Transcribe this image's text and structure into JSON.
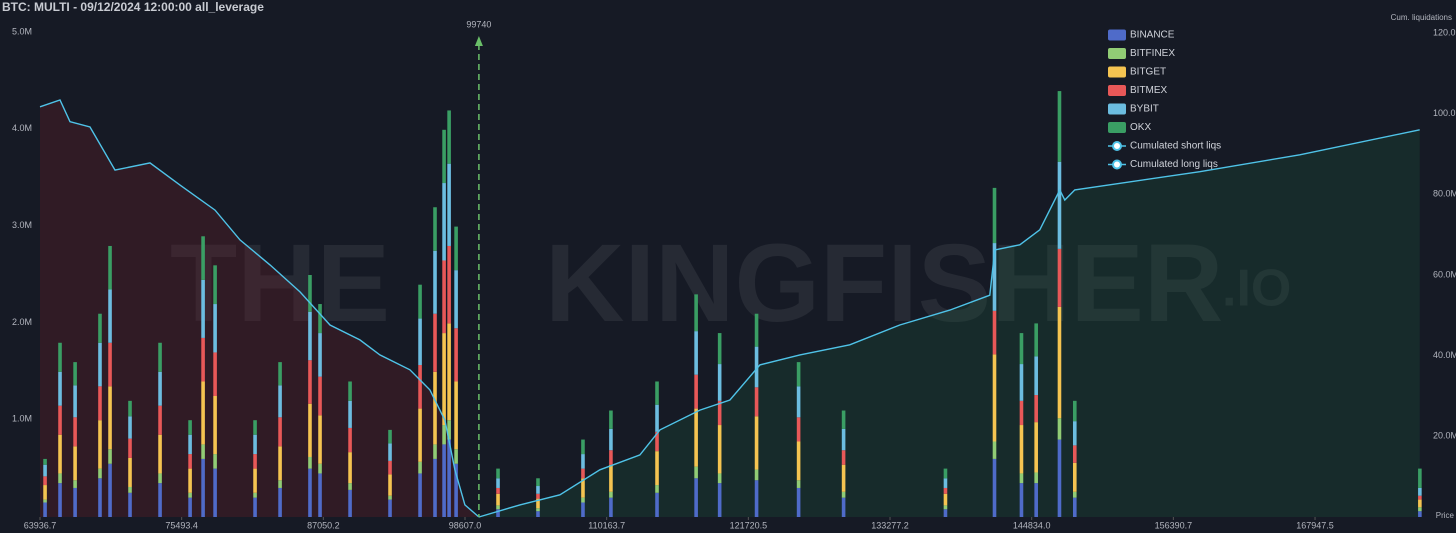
{
  "chart_data": {
    "type": "bar",
    "stacked": true,
    "title": "BTC: MULTI - 09/12/2024 12:00:00 all_leverage",
    "y2_label": "Cum. liquidations",
    "x_label": "Price",
    "watermark": [
      "THE",
      "KINGFISHER",
      ".IO"
    ],
    "annotation": {
      "x": 99740,
      "color": "#6abf69"
    },
    "xlim": [
      63936.7,
      177163
    ],
    "xticks": [
      63936.7,
      75493.4,
      87050.2,
      {
        "value": 98607.0,
        "label": "98607.0"
      },
      110163.7,
      121720.5,
      133277.2,
      {
        "value": 144834.0,
        "label": "144834.0"
      },
      156390.7,
      167947.5
    ],
    "ylim": [
      0,
      5000000
    ],
    "yticks": [
      {
        "value": 1000000,
        "label": "1.0M"
      },
      {
        "value": 2000000,
        "label": "2.0M"
      },
      {
        "value": 3000000,
        "label": "3.0M"
      },
      {
        "value": 4000000,
        "label": "4.0M"
      },
      {
        "value": 5000000,
        "label": "5.0M"
      }
    ],
    "y2lim": [
      0,
      120000000
    ],
    "y2ticks": [
      {
        "value": 20000000,
        "label": "20.0M"
      },
      {
        "value": 40000000,
        "label": "40.0M"
      },
      {
        "value": 60000000,
        "label": "60.0M"
      },
      {
        "value": 80000000,
        "label": "80.0M"
      },
      {
        "value": 100000000,
        "label": "100.0M"
      },
      {
        "value": 120000000,
        "label": "120.0M"
      }
    ],
    "x": [
      64350,
      65570,
      66800,
      68830,
      69650,
      71280,
      73730,
      76180,
      77240,
      78220,
      81480,
      83520,
      85960,
      86780,
      89230,
      92490,
      94940,
      96160,
      96900,
      97310,
      97880,
      101300,
      104560,
      108230,
      110510,
      114270,
      117460,
      119380,
      122390,
      125820,
      129490,
      137800,
      141800,
      144000,
      145200,
      147100,
      148350,
      176500
    ],
    "series": [
      {
        "name": "BINANCE",
        "color": "#4f6bc9",
        "values": [
          150000,
          350000,
          300000,
          400000,
          550000,
          250000,
          350000,
          200000,
          600000,
          500000,
          200000,
          300000,
          500000,
          450000,
          280000,
          180000,
          450000,
          600000,
          750000,
          800000,
          550000,
          80000,
          60000,
          150000,
          200000,
          250000,
          400000,
          350000,
          380000,
          300000,
          200000,
          80000,
          600000,
          350000,
          350000,
          800000,
          200000,
          60000
        ]
      },
      {
        "name": "BITFINEX",
        "color": "#91cc75",
        "values": [
          30000,
          100000,
          80000,
          100000,
          150000,
          60000,
          100000,
          50000,
          150000,
          150000,
          50000,
          80000,
          120000,
          100000,
          70000,
          40000,
          120000,
          150000,
          200000,
          200000,
          150000,
          40000,
          30000,
          50000,
          60000,
          80000,
          120000,
          100000,
          110000,
          80000,
          60000,
          40000,
          180000,
          100000,
          110000,
          220000,
          60000,
          40000
        ]
      },
      {
        "name": "BITGET",
        "color": "#f5c451",
        "values": [
          150000,
          400000,
          350000,
          500000,
          650000,
          300000,
          400000,
          250000,
          650000,
          600000,
          250000,
          350000,
          550000,
          500000,
          320000,
          220000,
          550000,
          750000,
          950000,
          1000000,
          700000,
          120000,
          100000,
          200000,
          280000,
          350000,
          600000,
          500000,
          550000,
          400000,
          280000,
          120000,
          900000,
          500000,
          520000,
          1150000,
          300000,
          80000
        ]
      },
      {
        "name": "BITMEX",
        "color": "#e85858",
        "values": [
          90000,
          300000,
          300000,
          350000,
          450000,
          200000,
          300000,
          150000,
          450000,
          450000,
          150000,
          300000,
          450000,
          400000,
          250000,
          140000,
          450000,
          600000,
          750000,
          800000,
          550000,
          60000,
          50000,
          100000,
          150000,
          200000,
          350000,
          250000,
          300000,
          250000,
          150000,
          60000,
          450000,
          250000,
          280000,
          600000,
          180000,
          40000
        ]
      },
      {
        "name": "BYBIT",
        "color": "#6cbde0",
        "values": [
          120000,
          350000,
          330000,
          450000,
          550000,
          230000,
          350000,
          200000,
          600000,
          500000,
          200000,
          330000,
          500000,
          450000,
          280000,
          180000,
          480000,
          650000,
          800000,
          850000,
          600000,
          100000,
          80000,
          150000,
          220000,
          280000,
          450000,
          380000,
          420000,
          320000,
          220000,
          100000,
          700000,
          380000,
          400000,
          900000,
          250000,
          80000
        ]
      },
      {
        "name": "OKX",
        "color": "#3a9e64",
        "values": [
          60000,
          300000,
          240000,
          300000,
          450000,
          160000,
          300000,
          150000,
          450000,
          400000,
          150000,
          240000,
          380000,
          300000,
          200000,
          140000,
          350000,
          450000,
          550000,
          550000,
          450000,
          100000,
          80000,
          150000,
          190000,
          240000,
          380000,
          320000,
          340000,
          250000,
          190000,
          100000,
          570000,
          320000,
          340000,
          730000,
          210000,
          200000
        ]
      },
      {
        "name": "Cumulated short liqs",
        "type": "line",
        "axis": "y2",
        "color": "#4fc3e8",
        "area_color": "rgba(30,90,60,0.28)",
        "x": [
          99740,
          103085,
          106348,
          109610,
          112873,
          114504,
          117767,
          120213,
          122660,
          125922,
          130000,
          134078,
          138157,
          141419,
          141827,
          143866,
          145498,
          147129,
          147537,
          148352,
          158548,
          166703,
          176490
        ],
        "values": [
          0,
          3000000,
          5500000,
          11700000,
          15400000,
          21600000,
          26500000,
          29000000,
          37700000,
          40200000,
          42700000,
          47600000,
          51300000,
          55000000,
          66200000,
          67500000,
          71200000,
          81100000,
          78600000,
          81100000,
          85600000,
          89800000,
          96000000
        ]
      },
      {
        "name": "Cumulated long liqs",
        "type": "line",
        "axis": "y2",
        "color": "#4fc3e8",
        "area_color": "rgba(110,30,40,0.3)",
        "x": [
          63936.7,
          65568,
          66384,
          68015,
          70054,
          72908,
          75355,
          78210,
          80249,
          82696,
          85143,
          87590,
          90036,
          91667,
          94114,
          95745,
          96969,
          97784,
          98600,
          99740
        ],
        "values": [
          101700000,
          103400000,
          98000000,
          96700000,
          86000000,
          87800000,
          82300000,
          76100000,
          68700000,
          62500000,
          55800000,
          47600000,
          43900000,
          40200000,
          36500000,
          31500000,
          24000000,
          11700000,
          3000000,
          0
        ]
      }
    ]
  }
}
